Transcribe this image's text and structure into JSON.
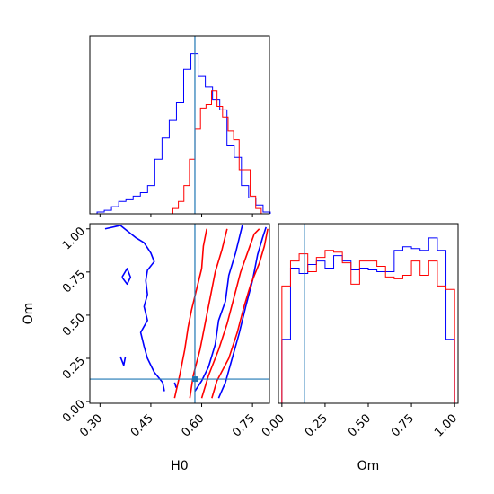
{
  "chart_data": {
    "type": "corner",
    "parameters": [
      "H0",
      "Om"
    ],
    "truth": {
      "H0": 0.58,
      "Om": 0.13
    },
    "colors": {
      "run_a": "#0000ff",
      "run_b": "#ff0000",
      "truth": "#1f77b4"
    },
    "panels": [
      {
        "id": "hist-H0",
        "type": "histogram",
        "xlim": [
          0.27,
          0.8
        ],
        "series": [
          {
            "color": "#0000ff",
            "bin_edges": [
              0.27,
              0.2913,
              0.3126,
              0.3339,
              0.3552,
              0.3765,
              0.3978,
              0.4191,
              0.4404,
              0.4617,
              0.483,
              0.5043,
              0.5256,
              0.5469,
              0.5682,
              0.5895,
              0.6108,
              0.6321,
              0.6534,
              0.6747,
              0.696,
              0.7173,
              0.7386,
              0.7599,
              0.7812,
              0.8025
            ],
            "values": [
              0,
              0.01,
              0.02,
              0.04,
              0.07,
              0.08,
              0.1,
              0.12,
              0.16,
              0.31,
              0.43,
              0.53,
              0.63,
              0.82,
              0.91,
              0.78,
              0.72,
              0.65,
              0.59,
              0.39,
              0.32,
              0.16,
              0.09,
              0.05,
              0.01
            ]
          },
          {
            "color": "#ff0000",
            "bin_edges": [
              0.515,
              0.5313,
              0.5476,
              0.5639,
              0.5802,
              0.5965,
              0.6128,
              0.6291,
              0.6454,
              0.6617,
              0.678,
              0.6943,
              0.7106,
              0.7269,
              0.7432,
              0.7595,
              0.7758,
              0.7921
            ],
            "values": [
              0.03,
              0.07,
              0.16,
              0.31,
              0.48,
              0.6,
              0.62,
              0.7,
              0.61,
              0.55,
              0.47,
              0.42,
              0.25,
              0.25,
              0.1,
              0.03,
              0
            ]
          }
        ],
        "truth_line": 0.58
      },
      {
        "id": "contour-H0-Om",
        "type": "contour",
        "xlim": [
          0.27,
          0.8
        ],
        "ylim": [
          -0.01,
          1.03
        ],
        "xlabel": "H0",
        "ylabel": "Om",
        "xticks": [
          "0.30",
          "0.45",
          "0.60",
          "0.75"
        ],
        "yticks": [
          "0.00",
          "0.25",
          "0.50",
          "0.75",
          "1.00"
        ],
        "contours": [
          {
            "color": "#0000ff",
            "points": [
              [
                0.315,
                1.0
              ],
              [
                0.36,
                1.02
              ],
              [
                0.405,
                0.95
              ],
              [
                0.43,
                0.92
              ],
              [
                0.45,
                0.86
              ],
              [
                0.46,
                0.81
              ],
              [
                0.44,
                0.76
              ],
              [
                0.435,
                0.7
              ],
              [
                0.44,
                0.62
              ],
              [
                0.43,
                0.55
              ],
              [
                0.44,
                0.47
              ],
              [
                0.42,
                0.4
              ],
              [
                0.43,
                0.32
              ],
              [
                0.44,
                0.25
              ],
              [
                0.46,
                0.17
              ],
              [
                0.485,
                0.11
              ],
              [
                0.49,
                0.06
              ]
            ]
          },
          {
            "color": "#0000ff",
            "points": [
              [
                0.36,
                0.26
              ],
              [
                0.37,
                0.21
              ],
              [
                0.375,
                0.26
              ]
            ]
          },
          {
            "color": "#0000ff",
            "points": [
              [
                0.365,
                0.72
              ],
              [
                0.38,
                0.77
              ],
              [
                0.39,
                0.72
              ],
              [
                0.38,
                0.68
              ],
              [
                0.365,
                0.72
              ]
            ]
          },
          {
            "color": "#0000ff",
            "points": [
              [
                0.52,
                0.11
              ],
              [
                0.525,
                0.08
              ]
            ]
          },
          {
            "color": "#0000ff",
            "points": [
              [
                0.575,
                0.13
              ],
              [
                0.59,
                0.12
              ]
            ]
          },
          {
            "color": "#0000ff",
            "points": [
              [
                0.58,
                0.06
              ],
              [
                0.6,
                0.12
              ],
              [
                0.62,
                0.2
              ],
              [
                0.64,
                0.33
              ],
              [
                0.65,
                0.47
              ],
              [
                0.67,
                0.58
              ],
              [
                0.68,
                0.73
              ],
              [
                0.7,
                0.86
              ],
              [
                0.715,
                0.98
              ],
              [
                0.72,
                1.02
              ]
            ]
          },
          {
            "color": "#0000ff",
            "points": [
              [
                0.65,
                0.02
              ],
              [
                0.67,
                0.11
              ],
              [
                0.69,
                0.25
              ],
              [
                0.71,
                0.39
              ],
              [
                0.73,
                0.55
              ],
              [
                0.75,
                0.7
              ],
              [
                0.765,
                0.85
              ],
              [
                0.78,
                0.95
              ],
              [
                0.79,
                1.01
              ]
            ]
          },
          {
            "color": "#ff0000",
            "points": [
              [
                0.52,
                0.02
              ],
              [
                0.535,
                0.15
              ],
              [
                0.55,
                0.3
              ],
              [
                0.56,
                0.43
              ],
              [
                0.57,
                0.53
              ],
              [
                0.585,
                0.65
              ],
              [
                0.6,
                0.77
              ],
              [
                0.605,
                0.9
              ],
              [
                0.615,
                1.0
              ]
            ]
          },
          {
            "color": "#ff0000",
            "points": [
              [
                0.565,
                0.02
              ],
              [
                0.575,
                0.15
              ],
              [
                0.595,
                0.3
              ],
              [
                0.61,
                0.45
              ],
              [
                0.625,
                0.6
              ],
              [
                0.64,
                0.75
              ],
              [
                0.66,
                0.88
              ],
              [
                0.675,
                1.0
              ]
            ]
          },
          {
            "color": "#ff0000",
            "points": [
              [
                0.6,
                0.02
              ],
              [
                0.62,
                0.15
              ],
              [
                0.65,
                0.3
              ],
              [
                0.675,
                0.45
              ],
              [
                0.695,
                0.6
              ],
              [
                0.715,
                0.75
              ],
              [
                0.735,
                0.86
              ],
              [
                0.755,
                0.97
              ],
              [
                0.77,
                1.0
              ]
            ]
          },
          {
            "color": "#ff0000",
            "points": [
              [
                0.63,
                0.02
              ],
              [
                0.645,
                0.12
              ],
              [
                0.68,
                0.25
              ],
              [
                0.705,
                0.4
              ],
              [
                0.725,
                0.55
              ],
              [
                0.745,
                0.68
              ],
              [
                0.77,
                0.8
              ],
              [
                0.785,
                0.9
              ],
              [
                0.795,
                1.0
              ]
            ]
          }
        ],
        "truth": [
          0.58,
          0.13
        ]
      },
      {
        "id": "hist-Om",
        "type": "histogram",
        "xlim": [
          -0.02,
          1.02
        ],
        "xlabel": "Om",
        "xticks": [
          "0.00",
          "0.25",
          "0.50",
          "0.75",
          "1.00"
        ],
        "series": [
          {
            "color": "#0000ff",
            "bin_edges": [
              0.0,
              0.05,
              0.1,
              0.15,
              0.2,
              0.25,
              0.3,
              0.35,
              0.4,
              0.45,
              0.5,
              0.55,
              0.6,
              0.65,
              0.7,
              0.75,
              0.8,
              0.85,
              0.9,
              0.95,
              1.0
            ],
            "values": [
              0.36,
              0.76,
              0.73,
              0.78,
              0.8,
              0.76,
              0.83,
              0.8,
              0.75,
              0.76,
              0.75,
              0.74,
              0.74,
              0.86,
              0.88,
              0.87,
              0.86,
              0.93,
              0.86,
              0.36
            ]
          },
          {
            "color": "#ff0000",
            "bin_edges": [
              0.0,
              0.05,
              0.1,
              0.15,
              0.2,
              0.25,
              0.3,
              0.35,
              0.4,
              0.45,
              0.5,
              0.55,
              0.6,
              0.65,
              0.7,
              0.75,
              0.8,
              0.85,
              0.9,
              0.95,
              1.0
            ],
            "values": [
              0.66,
              0.8,
              0.84,
              0.74,
              0.82,
              0.86,
              0.85,
              0.79,
              0.67,
              0.8,
              0.8,
              0.77,
              0.71,
              0.7,
              0.72,
              0.8,
              0.72,
              0.8,
              0.66,
              0.64
            ]
          }
        ],
        "truth_line": 0.13
      }
    ]
  }
}
